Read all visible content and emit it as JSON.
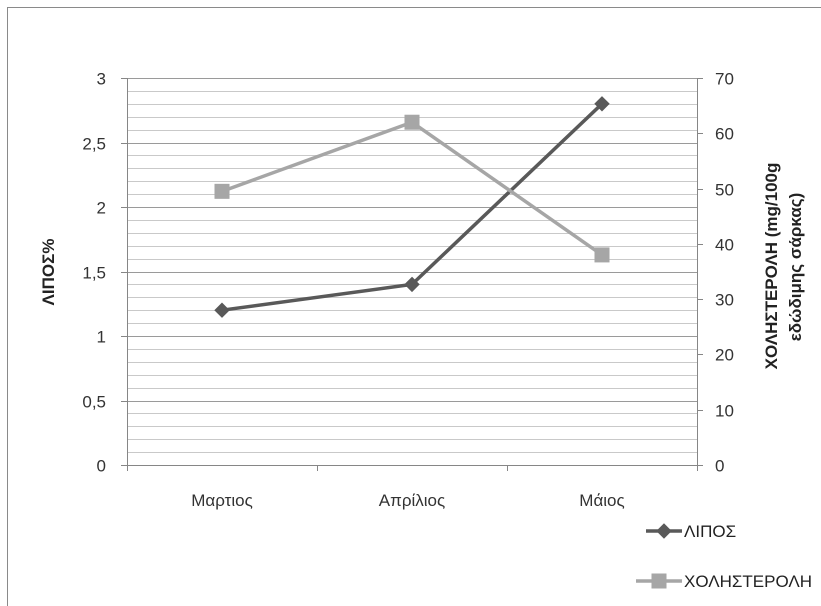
{
  "chart_data": {
    "type": "line",
    "categories": [
      "Μαρτιος",
      "Απρίλιος",
      "Μάιος"
    ],
    "series": [
      {
        "name": "ΛΙΠΟΣ",
        "axis": "left",
        "values": [
          1.2,
          1.4,
          2.8
        ],
        "color": "#595959",
        "marker": "diamond"
      },
      {
        "name": "ΧΟΛΗΣΤΕΡΟΛΗ",
        "axis": "right",
        "values": [
          49.5,
          62,
          38
        ],
        "color": "#a6a6a6",
        "marker": "square"
      }
    ],
    "ylabel": "ΛΙΠΟΣ%",
    "y2label_lines": [
      "ΧΟΛΗΣΤΕΡΟΛΗ (mg/100g",
      "εδώδιμης σάρκας)"
    ],
    "ylim": [
      0,
      3
    ],
    "yticks": [
      0,
      0.5,
      1,
      1.5,
      2,
      2.5,
      3
    ],
    "ytick_labels": [
      "0",
      "0,5",
      "1",
      "1,5",
      "2",
      "2,5",
      "3"
    ],
    "y2lim": [
      0,
      70
    ],
    "y2ticks": [
      0,
      10,
      20,
      30,
      40,
      50,
      60,
      70
    ],
    "grid": {
      "major": true,
      "minor": true
    },
    "legend": "bottom-right"
  }
}
